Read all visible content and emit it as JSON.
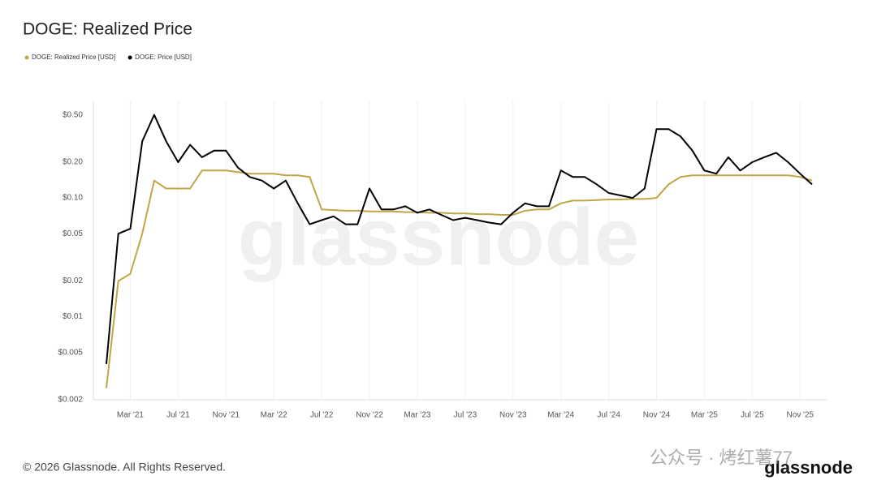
{
  "chart_data": {
    "type": "line",
    "title": "DOGE: Realized Price",
    "watermark": "glassnode",
    "footer": "© 2026 Glassnode. All Rights Reserved.",
    "logo": "glassnode",
    "overlay_text": "公众号 · 烤红薯77",
    "log_scale": true,
    "grid": true,
    "x": [
      "2021-01",
      "2021-02",
      "2021-03",
      "2021-04",
      "2021-05",
      "2021-06",
      "2021-07",
      "2021-08",
      "2021-09",
      "2021-10",
      "2021-11",
      "2021-12",
      "2022-01",
      "2022-02",
      "2022-03",
      "2022-04",
      "2022-05",
      "2022-06",
      "2022-07",
      "2022-08",
      "2022-09",
      "2022-10",
      "2022-11",
      "2022-12",
      "2023-01",
      "2023-02",
      "2023-03",
      "2023-04",
      "2023-05",
      "2023-06",
      "2023-07",
      "2023-08",
      "2023-09",
      "2023-10",
      "2023-11",
      "2023-12",
      "2024-01",
      "2024-02",
      "2024-03",
      "2024-04",
      "2024-05",
      "2024-06",
      "2024-07",
      "2024-08",
      "2024-09",
      "2024-10",
      "2024-11",
      "2024-12",
      "2025-01",
      "2025-02",
      "2025-03",
      "2025-04",
      "2025-05",
      "2025-06",
      "2025-07",
      "2025-08",
      "2025-09",
      "2025-10",
      "2025-11",
      "2025-12"
    ],
    "xlim": [
      "2021-01",
      "2025-12"
    ],
    "xticks": [
      {
        "value": "2021-03",
        "label": "Mar '21"
      },
      {
        "value": "2021-07",
        "label": "Jul '21"
      },
      {
        "value": "2021-11",
        "label": "Nov '21"
      },
      {
        "value": "2022-03",
        "label": "Mar '22"
      },
      {
        "value": "2022-07",
        "label": "Jul '22"
      },
      {
        "value": "2022-11",
        "label": "Nov '22"
      },
      {
        "value": "2023-03",
        "label": "Mar '23"
      },
      {
        "value": "2023-07",
        "label": "Jul '23"
      },
      {
        "value": "2023-11",
        "label": "Nov '23"
      },
      {
        "value": "2024-03",
        "label": "Mar '24"
      },
      {
        "value": "2024-07",
        "label": "Jul '24"
      },
      {
        "value": "2024-11",
        "label": "Nov '24"
      },
      {
        "value": "2025-03",
        "label": "Mar '25"
      },
      {
        "value": "2025-07",
        "label": "Jul '25"
      },
      {
        "value": "2025-11",
        "label": "Nov '25"
      }
    ],
    "ylim": [
      0.002,
      0.65
    ],
    "yticks": [
      {
        "value": 0.002,
        "label": "$0.002"
      },
      {
        "value": 0.005,
        "label": "$0.005"
      },
      {
        "value": 0.01,
        "label": "$0.01"
      },
      {
        "value": 0.02,
        "label": "$0.02"
      },
      {
        "value": 0.05,
        "label": "$0.05"
      },
      {
        "value": 0.1,
        "label": "$0.10"
      },
      {
        "value": 0.2,
        "label": "$0.20"
      },
      {
        "value": 0.5,
        "label": "$0.50"
      }
    ],
    "series": [
      {
        "name": "DOGE: Realized Price [USD]",
        "color": "#c2a645",
        "values": [
          0.0025,
          0.02,
          0.023,
          0.05,
          0.14,
          0.12,
          0.12,
          0.12,
          0.17,
          0.17,
          0.17,
          0.165,
          0.16,
          0.16,
          0.16,
          0.155,
          0.155,
          0.15,
          0.08,
          0.079,
          0.078,
          0.078,
          0.077,
          0.077,
          0.077,
          0.076,
          0.076,
          0.075,
          0.075,
          0.074,
          0.074,
          0.073,
          0.073,
          0.072,
          0.072,
          0.078,
          0.08,
          0.08,
          0.09,
          0.095,
          0.095,
          0.096,
          0.097,
          0.097,
          0.098,
          0.098,
          0.1,
          0.13,
          0.15,
          0.155,
          0.155,
          0.155,
          0.155,
          0.155,
          0.155,
          0.155,
          0.155,
          0.155,
          0.15,
          0.14
        ]
      },
      {
        "name": "DOGE: Price [USD]",
        "color": "#000000",
        "values": [
          0.004,
          0.05,
          0.055,
          0.3,
          0.5,
          0.3,
          0.2,
          0.28,
          0.22,
          0.25,
          0.25,
          0.18,
          0.15,
          0.14,
          0.12,
          0.14,
          0.09,
          0.06,
          0.065,
          0.07,
          0.06,
          0.06,
          0.12,
          0.08,
          0.08,
          0.085,
          0.075,
          0.08,
          0.072,
          0.065,
          0.068,
          0.065,
          0.062,
          0.06,
          0.075,
          0.09,
          0.085,
          0.085,
          0.17,
          0.15,
          0.15,
          0.13,
          0.11,
          0.105,
          0.1,
          0.12,
          0.38,
          0.38,
          0.33,
          0.25,
          0.17,
          0.16,
          0.22,
          0.17,
          0.2,
          0.22,
          0.24,
          0.2,
          0.16,
          0.13
        ]
      }
    ]
  }
}
